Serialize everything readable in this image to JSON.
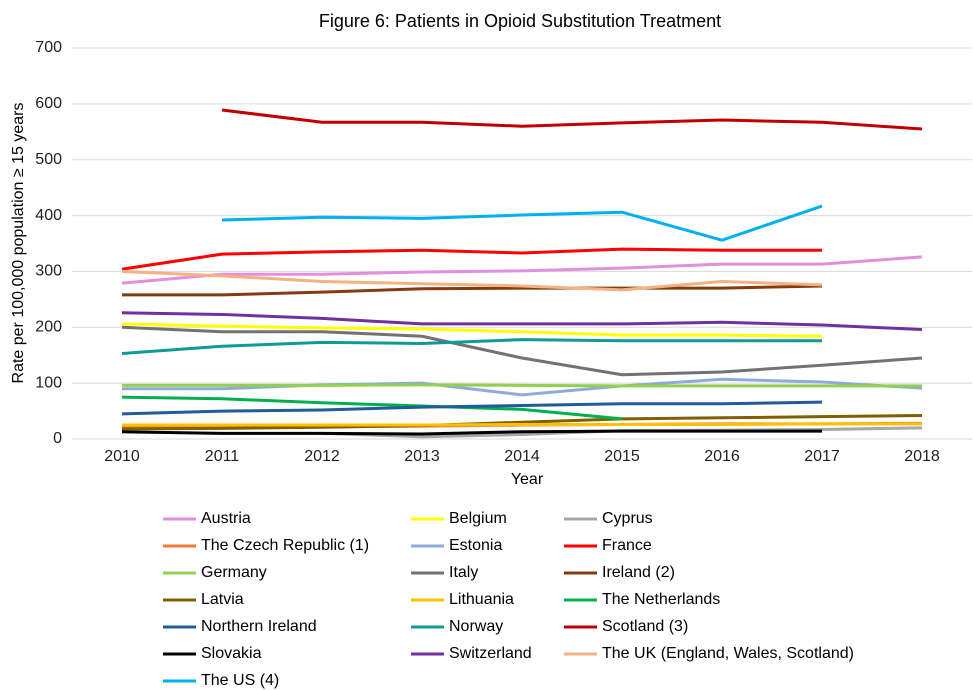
{
  "chart_data": {
    "type": "line",
    "title": "Figure 6: Patients in Opioid Substitution Treatment",
    "x_label": "Year",
    "y_label": "Rate per 100,000 population ≥ 15 years",
    "categories": [
      "2010",
      "2011",
      "2012",
      "2013",
      "2014",
      "2015",
      "2016",
      "2017",
      "2018"
    ],
    "ylim": [
      0,
      700
    ],
    "yticks": [
      0,
      100,
      200,
      300,
      400,
      500,
      600,
      700
    ],
    "grid": true,
    "legend": "bottom",
    "series": [
      {
        "name": "Austria",
        "color": "#e38fe0",
        "values": [
          279,
          295,
          295,
          299,
          301,
          306,
          313,
          313,
          326
        ]
      },
      {
        "name": "Belgium",
        "color": "#ffff00",
        "values": [
          206,
          202,
          199,
          197,
          192,
          186,
          186,
          184,
          null
        ]
      },
      {
        "name": "Cyprus",
        "color": "#a6a6a6",
        "values": [
          null,
          null,
          10,
          4,
          8,
          15,
          16,
          17,
          20
        ]
      },
      {
        "name": "The Czech Republic (1)",
        "color": "#ed7d31",
        "values": [
          22,
          22,
          22,
          23,
          25,
          26,
          27,
          27,
          28
        ]
      },
      {
        "name": "Estonia",
        "color": "#8faadc",
        "values": [
          90,
          90,
          97,
          100,
          79,
          95,
          107,
          102,
          91
        ]
      },
      {
        "name": "France",
        "color": "#ff0000",
        "values": [
          304,
          331,
          335,
          338,
          333,
          340,
          338,
          338,
          null
        ]
      },
      {
        "name": "Germany",
        "color": "#92d050",
        "values": [
          96,
          96,
          96,
          97,
          96,
          95,
          95,
          95,
          95
        ]
      },
      {
        "name": "Italy",
        "color": "#767171",
        "values": [
          200,
          192,
          192,
          184,
          145,
          115,
          120,
          132,
          145
        ]
      },
      {
        "name": "Ireland (2)",
        "color": "#843c0c",
        "values": [
          258,
          258,
          263,
          269,
          270,
          270,
          270,
          274,
          null
        ]
      },
      {
        "name": "Latvia",
        "color": "#7f6000",
        "values": [
          18,
          19,
          21,
          24,
          30,
          36,
          38,
          40,
          42
        ]
      },
      {
        "name": "Lithuania",
        "color": "#ffc000",
        "values": [
          25,
          25,
          25,
          25,
          26,
          26,
          26,
          27,
          27
        ]
      },
      {
        "name": "The Netherlands",
        "color": "#00b050",
        "values": [
          75,
          72,
          65,
          59,
          53,
          36,
          null,
          null,
          null
        ]
      },
      {
        "name": "Northern Ireland",
        "color": "#1f5c99",
        "values": [
          45,
          50,
          52,
          57,
          60,
          63,
          63,
          66,
          null
        ]
      },
      {
        "name": "Norway",
        "color": "#109a96",
        "values": [
          153,
          166,
          173,
          171,
          178,
          176,
          176,
          176,
          null
        ]
      },
      {
        "name": "Scotland (3)",
        "color": "#c00000",
        "values": [
          null,
          589,
          567,
          567,
          560,
          566,
          571,
          567,
          555
        ]
      },
      {
        "name": "Slovakia",
        "color": "#000000",
        "values": [
          13,
          10,
          10,
          9,
          13,
          14,
          14,
          14,
          null
        ]
      },
      {
        "name": "Switzerland",
        "color": "#7030a0",
        "values": [
          226,
          223,
          216,
          206,
          206,
          206,
          209,
          204,
          196
        ]
      },
      {
        "name": "The UK (England, Wales, Scotland)",
        "color": "#f4b183",
        "values": [
          300,
          292,
          282,
          278,
          274,
          267,
          282,
          276,
          null
        ]
      },
      {
        "name": "The US (4)",
        "color": "#00b0f0",
        "values": [
          null,
          392,
          397,
          395,
          401,
          406,
          356,
          417,
          null
        ]
      }
    ]
  }
}
